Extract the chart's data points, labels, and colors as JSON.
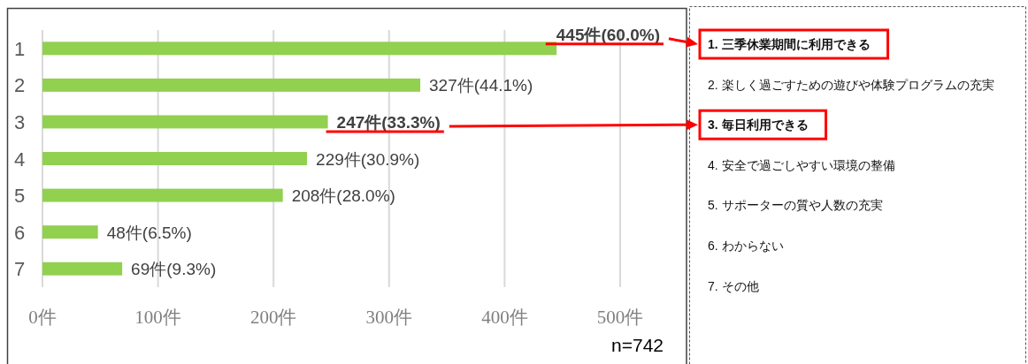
{
  "chart_data": [
    {
      "type": "bar",
      "orientation": "horizontal",
      "categories": [
        "1",
        "2",
        "3",
        "4",
        "5",
        "6",
        "7"
      ],
      "values": [
        445,
        327,
        247,
        229,
        208,
        48,
        69
      ],
      "color": "#92d050",
      "xlim": [
        0,
        500
      ],
      "xticks": [
        {
          "value": 0,
          "label": "0件"
        },
        {
          "value": 100,
          "label": "100件"
        },
        {
          "value": 200,
          "label": "200件"
        },
        {
          "value": 300,
          "label": "300件"
        },
        {
          "value": 400,
          "label": "400件"
        },
        {
          "value": 500,
          "label": "500件"
        }
      ],
      "grid": "x",
      "value_labels": [
        "**445件(60.0%)**",
        "327件(44.1%)",
        "**247件(33.3%)**",
        "229件(30.9%)",
        "208件(28.0%)",
        "48件(6.5%)",
        "69件(9.3%)"
      ],
      "annotations": [
        "n=742"
      ]
    },
    {
      "type": "other",
      "annotations": [
        "**1. 三季休業期間に利用できる**",
        "2. 楽しく過ごすための遊びや体験プログラムの充実",
        "**3. 毎日利用できる**",
        "4. 安全で過ごしやすい環境の整備",
        "5. サポーターの質や人数の充実",
        "6. わからない",
        "7. その他"
      ]
    }
  ]
}
